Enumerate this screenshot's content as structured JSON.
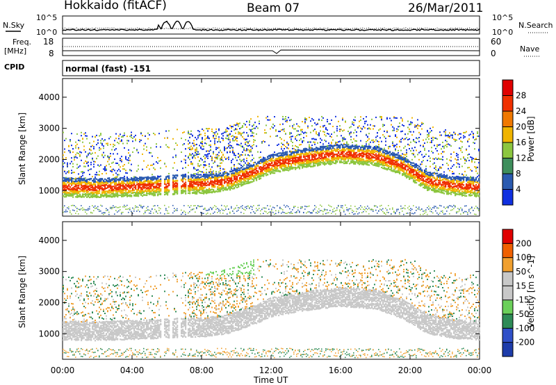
{
  "header": {
    "radar": "Hokkaido (fitACF)",
    "beam": "Beam 07",
    "date": "26/Mar/2011"
  },
  "top_panels": {
    "nsky_label": "N.Sky",
    "nsky_ticks": [
      "10^5",
      "10^0"
    ],
    "nsearch_label": "N.Search",
    "nsearch_ticks": [
      "10^5",
      "10^0"
    ],
    "freq_label_1": "Freq.",
    "freq_label_2": "[MHz]",
    "freq_ticks": [
      "18",
      "8"
    ],
    "nave_label": "Nave",
    "nave_ticks": [
      "60",
      "0"
    ],
    "cpid_label": "CPID",
    "cpid_value": "normal (fast) -151"
  },
  "chart_data": [
    {
      "type": "heatmap",
      "name": "power",
      "ylabel": "Slant Range [km]",
      "ylim": [
        180,
        4600
      ],
      "yticks": [
        "1000",
        "2000",
        "3000",
        "4000"
      ],
      "colorbar_label": "Power [dB]",
      "colorbar_ticks": [
        "4",
        "8",
        "12",
        "16",
        "20",
        "24",
        "28"
      ],
      "colorbar_colors": [
        "#1030e0",
        "#2a5ab0",
        "#3e8e5c",
        "#8cc63f",
        "#f0b400",
        "#f07800",
        "#f03000",
        "#e00000"
      ],
      "grid": false,
      "bands": [
        {
          "x": [
            0,
            2,
            4,
            5.5,
            7,
            8,
            9.5,
            11,
            12,
            14,
            16,
            18,
            19.5,
            21,
            22.5,
            24
          ],
          "y": [
            1100,
            1080,
            1120,
            1150,
            1200,
            1200,
            1300,
            1600,
            1850,
            2050,
            2180,
            2100,
            1800,
            1300,
            1150,
            1100
          ],
          "thickness_km": 280,
          "power_db": 24
        }
      ]
    },
    {
      "type": "heatmap",
      "name": "velocity",
      "ylabel": "Slant Range [km]",
      "ylim": [
        180,
        4600
      ],
      "yticks": [
        "1000",
        "2000",
        "3000",
        "4000"
      ],
      "colorbar_label": "Velocity [m s^-1]",
      "colorbar_ticks": [
        "200",
        "100",
        "50",
        "15",
        "-15",
        "-50",
        "-100",
        "-200"
      ],
      "colorbar_colors": [
        "#1e3caa",
        "#3050c8",
        "#2e8b57",
        "#6bd05a",
        "#c8c8c8",
        "#c8c8c8",
        "#f0a030",
        "#f06000",
        "#e00000"
      ],
      "grid": false
    }
  ],
  "xaxis": {
    "label": "Time UT",
    "ticks": [
      "00:00",
      "04:00",
      "08:00",
      "12:00",
      "16:00",
      "20:00",
      "00:00"
    ],
    "range_hours": [
      0,
      24
    ]
  }
}
